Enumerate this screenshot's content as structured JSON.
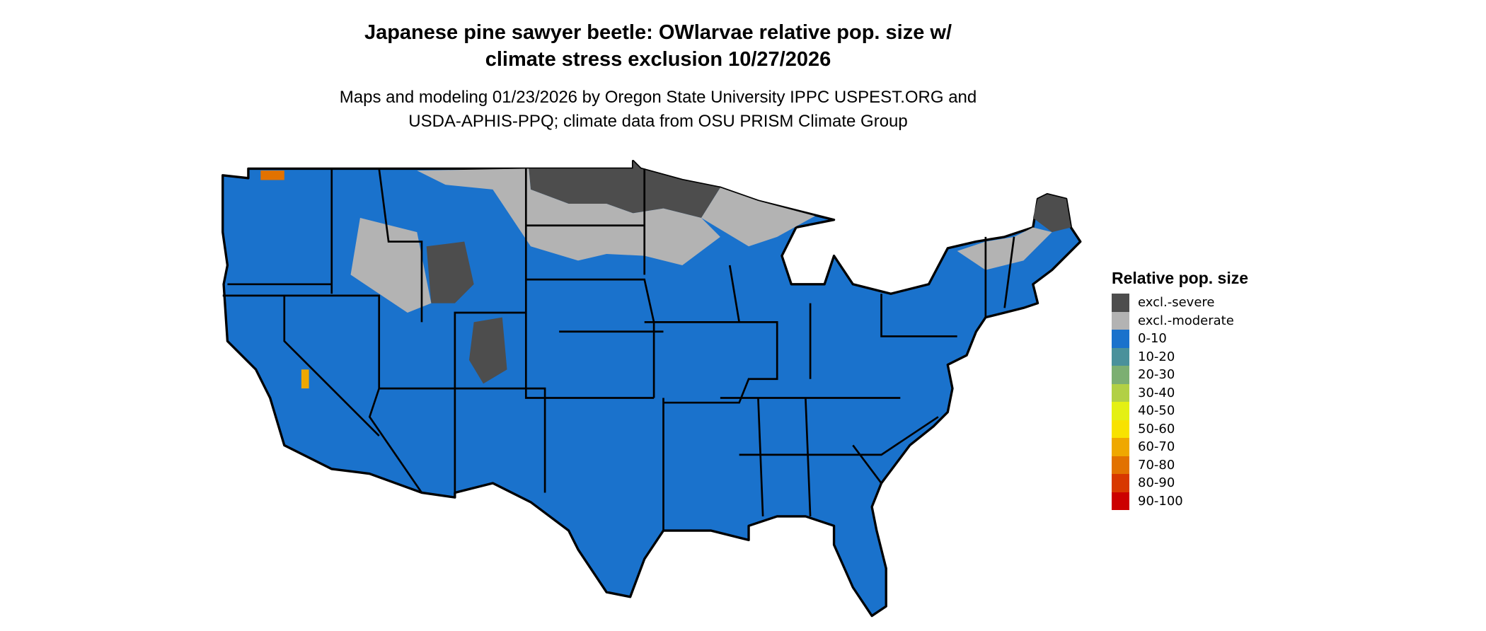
{
  "chart_data": {
    "type": "map",
    "title_lines": [
      "Japanese pine sawyer beetle: OWlarvae relative pop. size w/",
      "climate stress exclusion 10/27/2026"
    ],
    "subtitle_lines": [
      "Maps and modeling 01/23/2026 by Oregon State University IPPC USPEST.ORG and",
      "USDA-APHIS-PPQ; climate data from OSU PRISM Climate Group"
    ],
    "legend": {
      "title": "Relative pop. size",
      "placement": "right",
      "items": [
        {
          "label": "excl.-severe",
          "color": "#4d4d4d"
        },
        {
          "label": "excl.-moderate",
          "color": "#b3b3b3"
        },
        {
          "label": "0-10",
          "color": "#1a72cc"
        },
        {
          "label": "10-20",
          "color": "#4a919b"
        },
        {
          "label": "20-30",
          "color": "#7caf72"
        },
        {
          "label": "30-40",
          "color": "#b2d045"
        },
        {
          "label": "40-50",
          "color": "#e4f014"
        },
        {
          "label": "50-60",
          "color": "#f8e200"
        },
        {
          "label": "60-70",
          "color": "#efa800"
        },
        {
          "label": "70-80",
          "color": "#e27200"
        },
        {
          "label": "80-90",
          "color": "#d83800"
        },
        {
          "label": "90-100",
          "color": "#cc0000"
        }
      ]
    },
    "dominant_class": "0-10"
  }
}
